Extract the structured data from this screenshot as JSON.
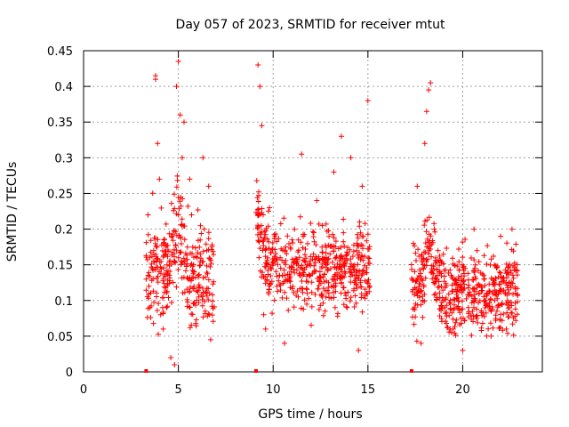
{
  "chart_data": {
    "type": "scatter",
    "title": "Day 057 of 2023, SRMTID for receiver mtut",
    "xlabel": "GPS time / hours",
    "ylabel": "SRMTID / TECUs",
    "xlim": [
      0,
      24.2
    ],
    "ylim": [
      0,
      0.45
    ],
    "xticks": [
      0,
      5,
      10,
      15,
      20
    ],
    "yticks": [
      0,
      0.05,
      0.1,
      0.15,
      0.2,
      0.25,
      0.3,
      0.35,
      0.4,
      0.45
    ],
    "ytick_labels": [
      "0",
      "0.05",
      "0.1",
      "0.15",
      "0.2",
      "0.25",
      "0.3",
      "0.35",
      "0.4",
      "0.45"
    ],
    "grid": true,
    "series": [
      {
        "name": "SRMTID",
        "color": "#ff0000",
        "marker": "plus",
        "clusters": [
          {
            "start": 3.3,
            "end": 6.9,
            "mean": 0.135,
            "spread": 0.07,
            "count": 320,
            "peak_x": 5.0,
            "peak_y": 0.43
          },
          {
            "start": 9.1,
            "end": 15.1,
            "mean": 0.145,
            "spread": 0.055,
            "count": 520,
            "peak_x": 9.2,
            "peak_y": 0.43
          },
          {
            "start": 17.3,
            "end": 22.9,
            "mean": 0.11,
            "spread": 0.055,
            "count": 520,
            "peak_x": 18.2,
            "peak_y": 0.4
          }
        ],
        "points": [
          [
            3.3,
            0.13
          ],
          [
            3.4,
            0.22
          ],
          [
            3.5,
            0.09
          ],
          [
            3.7,
            0.17
          ],
          [
            3.8,
            0.41
          ],
          [
            3.8,
            0.415
          ],
          [
            3.9,
            0.32
          ],
          [
            4.0,
            0.27
          ],
          [
            4.2,
            0.06
          ],
          [
            4.4,
            0.15
          ],
          [
            4.6,
            0.02
          ],
          [
            4.8,
            0.01
          ],
          [
            4.9,
            0.4
          ],
          [
            5.0,
            0.435
          ],
          [
            5.1,
            0.36
          ],
          [
            5.2,
            0.3
          ],
          [
            5.3,
            0.35
          ],
          [
            5.6,
            0.27
          ],
          [
            5.7,
            0.22
          ],
          [
            6.0,
            0.16
          ],
          [
            6.3,
            0.3
          ],
          [
            6.5,
            0.17
          ],
          [
            6.6,
            0.26
          ],
          [
            6.7,
            0.045
          ],
          [
            9.2,
            0.43
          ],
          [
            9.3,
            0.4
          ],
          [
            9.4,
            0.345
          ],
          [
            9.5,
            0.08
          ],
          [
            9.6,
            0.06
          ],
          [
            9.8,
            0.23
          ],
          [
            10.2,
            0.12
          ],
          [
            10.6,
            0.04
          ],
          [
            11.0,
            0.185
          ],
          [
            11.5,
            0.305
          ],
          [
            11.8,
            0.11
          ],
          [
            12.3,
            0.24
          ],
          [
            12.8,
            0.16
          ],
          [
            13.2,
            0.28
          ],
          [
            13.6,
            0.33
          ],
          [
            13.9,
            0.09
          ],
          [
            14.1,
            0.3
          ],
          [
            14.5,
            0.03
          ],
          [
            14.7,
            0.26
          ],
          [
            15.0,
            0.38
          ],
          [
            15.1,
            0.12
          ],
          [
            17.4,
            0.18
          ],
          [
            17.6,
            0.26
          ],
          [
            17.8,
            0.04
          ],
          [
            18.0,
            0.32
          ],
          [
            18.1,
            0.365
          ],
          [
            18.2,
            0.395
          ],
          [
            18.3,
            0.405
          ],
          [
            18.5,
            0.2
          ],
          [
            18.7,
            0.17
          ],
          [
            19.0,
            0.1
          ],
          [
            19.5,
            0.06
          ],
          [
            20.0,
            0.03
          ],
          [
            20.3,
            0.09
          ],
          [
            20.6,
            0.2
          ],
          [
            21.0,
            0.12
          ],
          [
            21.5,
            0.05
          ],
          [
            22.0,
            0.19
          ],
          [
            22.3,
            0.06
          ],
          [
            22.6,
            0.2
          ],
          [
            22.8,
            0.11
          ]
        ]
      }
    ],
    "zero_markers": [
      3.3,
      9.1,
      17.3
    ]
  }
}
